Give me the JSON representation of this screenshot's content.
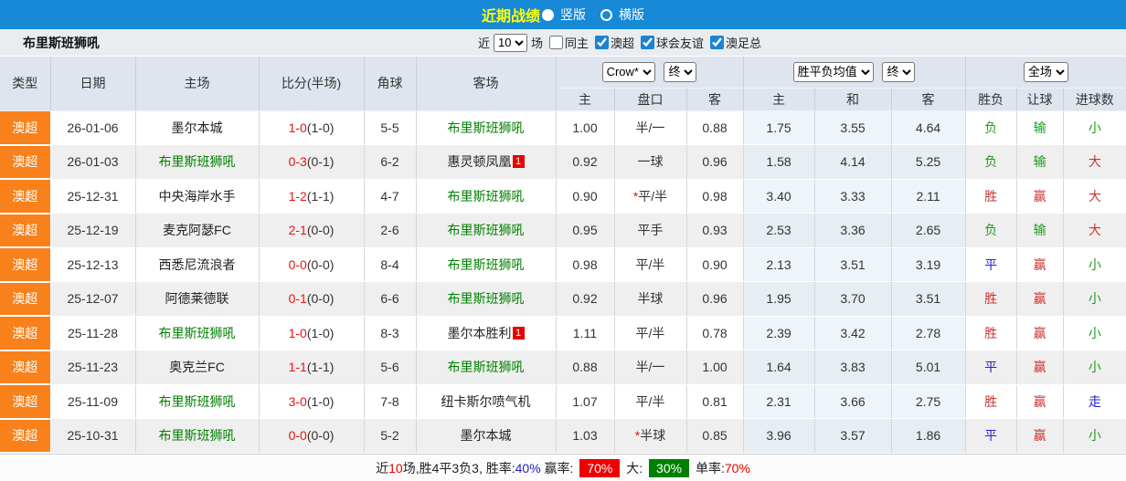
{
  "top_bar": {
    "title": "近期战绩",
    "view_options": [
      {
        "label": "竖版",
        "selected": true
      },
      {
        "label": "横版",
        "selected": false
      }
    ]
  },
  "filter_bar": {
    "team": "布里斯班狮吼",
    "near_label": "近",
    "match_count": "10",
    "matches_label": "场",
    "checkboxes": [
      {
        "label": "同主",
        "checked": false
      },
      {
        "label": "澳超",
        "checked": true
      },
      {
        "label": "球会友谊",
        "checked": true
      },
      {
        "label": "澳足总",
        "checked": true
      }
    ]
  },
  "table": {
    "headers_left": [
      "类型",
      "日期",
      "主场",
      "比分(半场)",
      "角球",
      "客场"
    ],
    "selects": {
      "company": "Crow*",
      "company_time": "终",
      "avg": "胜平负均值",
      "avg_time": "终",
      "scope": "全场"
    },
    "sub_headers": [
      "主",
      "盘口",
      "客",
      "主",
      "和",
      "客",
      "胜负",
      "让球",
      "进球数"
    ],
    "rows": [
      {
        "league": "澳超",
        "date": "26-01-06",
        "home": "墨尔本城",
        "home_focus": false,
        "home_badge": "",
        "score": "1-0",
        "half": "(1-0)",
        "corners": "5-5",
        "away": "布里斯班狮吼",
        "away_focus": true,
        "away_badge": "",
        "odds_home": "1.00",
        "handicap_star": false,
        "handicap": "半/一",
        "odds_away": "0.88",
        "avg_home": "1.75",
        "avg_draw": "3.55",
        "avg_away": "4.64",
        "result": "负",
        "result_color": "green",
        "cover": "输",
        "cover_color": "green",
        "goals": "小",
        "goals_color": "green"
      },
      {
        "league": "澳超",
        "date": "26-01-03",
        "home": "布里斯班狮吼",
        "home_focus": true,
        "home_badge": "",
        "score": "0-3",
        "half": "(0-1)",
        "corners": "6-2",
        "away": "惠灵顿凤凰",
        "away_focus": false,
        "away_badge": "1",
        "odds_home": "0.92",
        "handicap_star": false,
        "handicap": "一球",
        "odds_away": "0.96",
        "avg_home": "1.58",
        "avg_draw": "4.14",
        "avg_away": "5.25",
        "result": "负",
        "result_color": "green",
        "cover": "输",
        "cover_color": "green",
        "goals": "大",
        "goals_color": "red"
      },
      {
        "league": "澳超",
        "date": "25-12-31",
        "home": "中央海岸水手",
        "home_focus": false,
        "home_badge": "",
        "score": "1-2",
        "half": "(1-1)",
        "corners": "4-7",
        "away": "布里斯班狮吼",
        "away_focus": true,
        "away_badge": "",
        "odds_home": "0.90",
        "handicap_star": true,
        "handicap": "平/半",
        "odds_away": "0.98",
        "avg_home": "3.40",
        "avg_draw": "3.33",
        "avg_away": "2.11",
        "result": "胜",
        "result_color": "red",
        "cover": "赢",
        "cover_color": "red",
        "goals": "大",
        "goals_color": "red"
      },
      {
        "league": "澳超",
        "date": "25-12-19",
        "home": "麦克阿瑟FC",
        "home_focus": false,
        "home_badge": "",
        "score": "2-1",
        "half": "(0-0)",
        "corners": "2-6",
        "away": "布里斯班狮吼",
        "away_focus": true,
        "away_badge": "",
        "odds_home": "0.95",
        "handicap_star": false,
        "handicap": "平手",
        "odds_away": "0.93",
        "avg_home": "2.53",
        "avg_draw": "3.36",
        "avg_away": "2.65",
        "result": "负",
        "result_color": "green",
        "cover": "输",
        "cover_color": "green",
        "goals": "大",
        "goals_color": "red"
      },
      {
        "league": "澳超",
        "date": "25-12-13",
        "home": "西悉尼流浪者",
        "home_focus": false,
        "home_badge": "",
        "score": "0-0",
        "half": "(0-0)",
        "corners": "8-4",
        "away": "布里斯班狮吼",
        "away_focus": true,
        "away_badge": "",
        "odds_home": "0.98",
        "handicap_star": false,
        "handicap": "平/半",
        "odds_away": "0.90",
        "avg_home": "2.13",
        "avg_draw": "3.51",
        "avg_away": "3.19",
        "result": "平",
        "result_color": "blue",
        "cover": "赢",
        "cover_color": "red",
        "goals": "小",
        "goals_color": "green"
      },
      {
        "league": "澳超",
        "date": "25-12-07",
        "home": "阿德莱德联",
        "home_focus": false,
        "home_badge": "",
        "score": "0-1",
        "half": "(0-0)",
        "corners": "6-6",
        "away": "布里斯班狮吼",
        "away_focus": true,
        "away_badge": "",
        "odds_home": "0.92",
        "handicap_star": false,
        "handicap": "半球",
        "odds_away": "0.96",
        "avg_home": "1.95",
        "avg_draw": "3.70",
        "avg_away": "3.51",
        "result": "胜",
        "result_color": "red",
        "cover": "赢",
        "cover_color": "red",
        "goals": "小",
        "goals_color": "green"
      },
      {
        "league": "澳超",
        "date": "25-11-28",
        "home": "布里斯班狮吼",
        "home_focus": true,
        "home_badge": "",
        "score": "1-0",
        "half": "(1-0)",
        "corners": "8-3",
        "away": "墨尔本胜利",
        "away_focus": false,
        "away_badge": "1",
        "odds_home": "1.11",
        "handicap_star": false,
        "handicap": "平/半",
        "odds_away": "0.78",
        "avg_home": "2.39",
        "avg_draw": "3.42",
        "avg_away": "2.78",
        "result": "胜",
        "result_color": "red",
        "cover": "赢",
        "cover_color": "red",
        "goals": "小",
        "goals_color": "green"
      },
      {
        "league": "澳超",
        "date": "25-11-23",
        "home": "奥克兰FC",
        "home_focus": false,
        "home_badge": "",
        "score": "1-1",
        "half": "(1-1)",
        "corners": "5-6",
        "away": "布里斯班狮吼",
        "away_focus": true,
        "away_badge": "",
        "odds_home": "0.88",
        "handicap_star": false,
        "handicap": "半/一",
        "odds_away": "1.00",
        "avg_home": "1.64",
        "avg_draw": "3.83",
        "avg_away": "5.01",
        "result": "平",
        "result_color": "blue",
        "cover": "赢",
        "cover_color": "red",
        "goals": "小",
        "goals_color": "green"
      },
      {
        "league": "澳超",
        "date": "25-11-09",
        "home": "布里斯班狮吼",
        "home_focus": true,
        "home_badge": "",
        "score": "3-0",
        "half": "(1-0)",
        "corners": "7-8",
        "away": "纽卡斯尔喷气机",
        "away_focus": false,
        "away_badge": "",
        "odds_home": "1.07",
        "handicap_star": false,
        "handicap": "平/半",
        "odds_away": "0.81",
        "avg_home": "2.31",
        "avg_draw": "3.66",
        "avg_away": "2.75",
        "result": "胜",
        "result_color": "red",
        "cover": "赢",
        "cover_color": "red",
        "goals": "走",
        "goals_color": "blue"
      },
      {
        "league": "澳超",
        "date": "25-10-31",
        "home": "布里斯班狮吼",
        "home_focus": true,
        "home_badge": "",
        "score": "0-0",
        "half": "(0-0)",
        "corners": "5-2",
        "away": "墨尔本城",
        "away_focus": false,
        "away_badge": "",
        "odds_home": "1.03",
        "handicap_star": true,
        "handicap": "半球",
        "odds_away": "0.85",
        "avg_home": "3.96",
        "avg_draw": "3.57",
        "avg_away": "1.86",
        "result": "平",
        "result_color": "blue",
        "cover": "赢",
        "cover_color": "red",
        "goals": "小",
        "goals_color": "green"
      }
    ]
  },
  "footer": {
    "segments": [
      {
        "text": "近",
        "style": "plain"
      },
      {
        "text": "10",
        "style": "red"
      },
      {
        "text": "场,胜4平3负3, 胜率:",
        "style": "plain"
      },
      {
        "text": "40%",
        "style": "blue"
      },
      {
        "text": " 赢率: ",
        "style": "plain"
      },
      {
        "text": "70%",
        "style": "red-badge"
      },
      {
        "text": " 大: ",
        "style": "plain"
      },
      {
        "text": "30%",
        "style": "green-badge"
      },
      {
        "text": " 单率:",
        "style": "plain"
      },
      {
        "text": "70%",
        "style": "red"
      }
    ]
  }
}
